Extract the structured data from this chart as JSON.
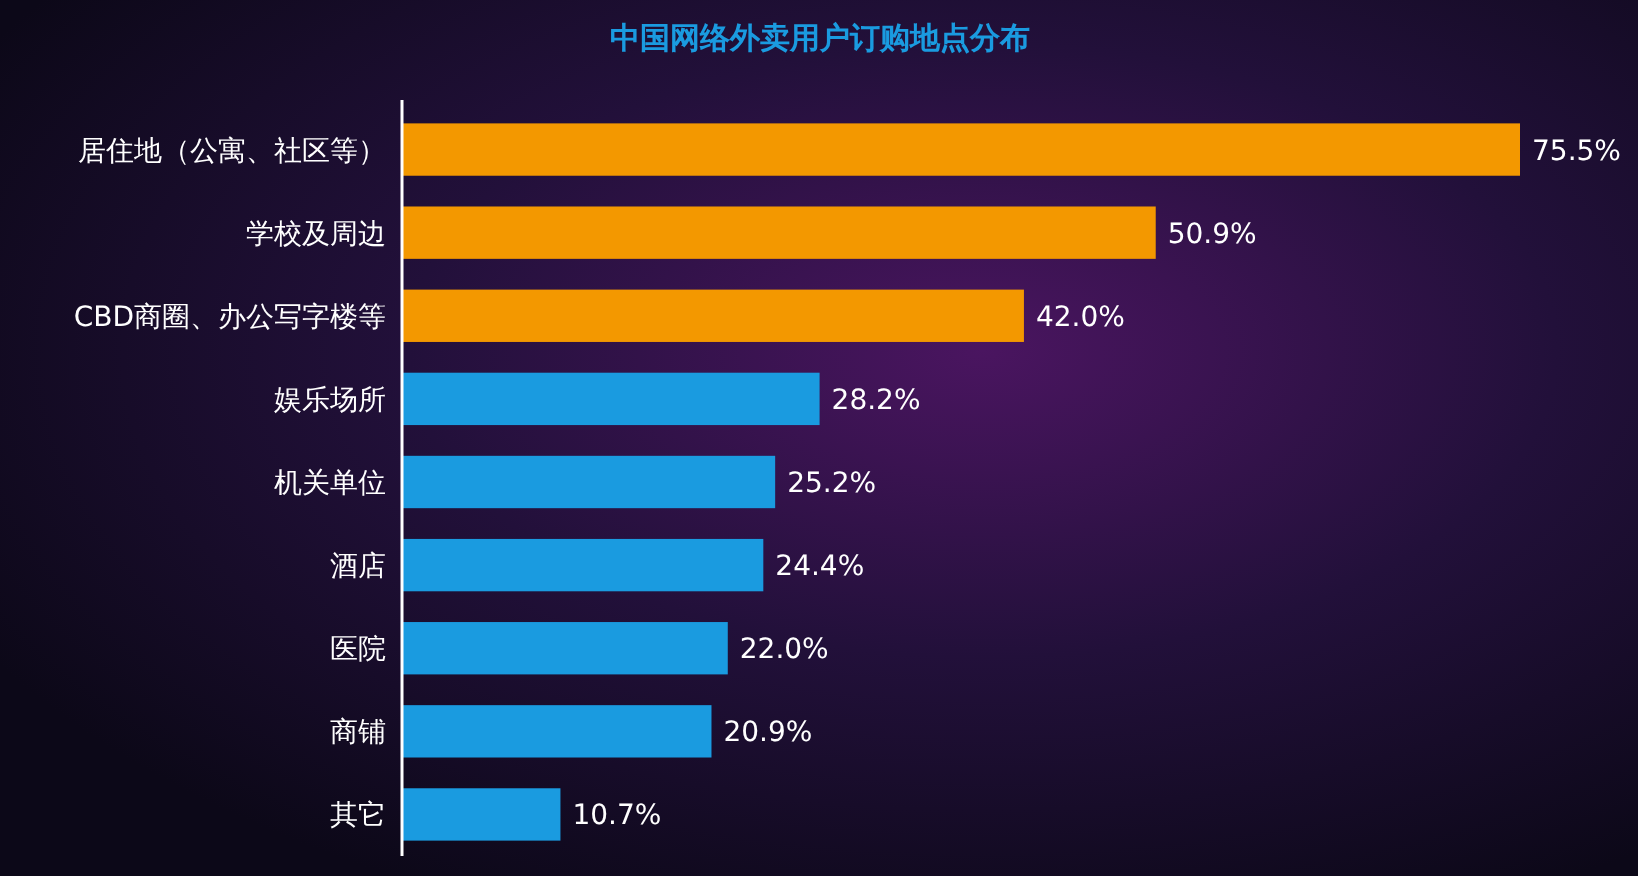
{
  "chart_data": {
    "type": "bar",
    "orientation": "horizontal",
    "title": "中国网络外卖用户订购地点分布",
    "categories": [
      "居住地（公寓、社区等）",
      "学校及周边",
      "CBD商圈、办公写字楼等",
      "娱乐场所",
      "机关单位",
      "酒店",
      "医院",
      "商铺",
      "其它"
    ],
    "values": [
      75.5,
      50.9,
      42.0,
      28.2,
      25.2,
      24.4,
      22.0,
      20.9,
      10.7
    ],
    "value_labels": [
      "75.5%",
      "50.9%",
      "42.0%",
      "28.2%",
      "25.2%",
      "24.4%",
      "22.0%",
      "20.9%",
      "10.7%"
    ],
    "colors": [
      "#f39800",
      "#f39800",
      "#f39800",
      "#1a9be0",
      "#1a9be0",
      "#1a9be0",
      "#1a9be0",
      "#1a9be0",
      "#1a9be0"
    ]
  }
}
